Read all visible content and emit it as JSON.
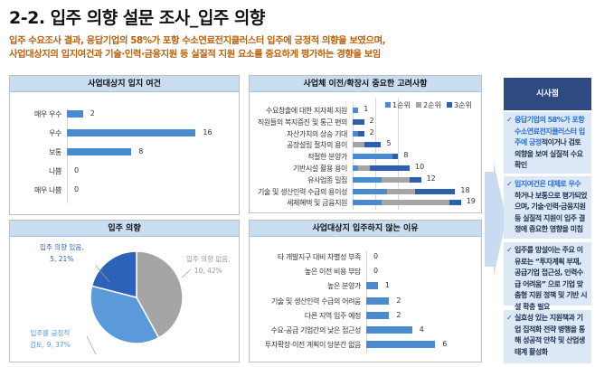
{
  "header": {
    "title": "2-2. 입주 의향 설문 조사_입주 의향",
    "subtitle_lines": [
      "입주 수요조사 결과, 응답기업의 58%가 포항 수소연료전지클러스터 입주에 긍정적 의향을 보였으며,",
      "사업대상지의 입지여건과 기술·인력·금융지원 등 실질적 지원 요소를 중요하게 평가하는 경향을 보임"
    ]
  },
  "chart_data": [
    {
      "type": "bar",
      "orientation": "horizontal",
      "title": "사업대상지 입지 여건",
      "categories": [
        "매우 우수",
        "우수",
        "보통",
        "나쁨",
        "매우 나쁨"
      ],
      "values": [
        2,
        16,
        8,
        0,
        0
      ],
      "color": "#4a8bd0"
    },
    {
      "type": "bar",
      "orientation": "horizontal",
      "stacked": true,
      "title": "사업체 이전/확장시 중요한 고려사항",
      "legend_position": "top-right",
      "categories": [
        "수요창출에 대한 지자체 지원",
        "직원들의 복지증진 및 통근 편의",
        "자산가치의 상승 기대",
        "공장설립 절차의 용이",
        "적절한 분양가",
        "기반시설 활용 용이",
        "유사업종 밀집",
        "기술 및 생산인력 수급의 용이성",
        "세제혜택 및 금융지원"
      ],
      "totals": [
        1,
        2,
        2,
        5,
        8,
        10,
        12,
        18,
        19
      ],
      "series": [
        {
          "name": "1순위",
          "color": "#4a8bd0",
          "values": [
            1,
            0,
            1,
            0,
            7,
            1,
            5,
            6,
            5
          ]
        },
        {
          "name": "2순위",
          "color": "#a5a5a5",
          "values": [
            0,
            0,
            0,
            2,
            0,
            2,
            5,
            5,
            12
          ]
        },
        {
          "name": "3순위",
          "color": "#2e5fae",
          "values": [
            0,
            2,
            1,
            3,
            1,
            7,
            2,
            7,
            2
          ]
        }
      ]
    },
    {
      "type": "pie",
      "title": "입주 의향",
      "slices": [
        {
          "label": "입주 의향 없음,",
          "value_text": "10, 42%",
          "percent": 42,
          "color": "#a5a5a5"
        },
        {
          "label": "입주를 긍정적",
          "value_text": "검토, 9, 37%",
          "percent": 37,
          "color": "#5b9ad8"
        },
        {
          "label": "입주 의향 있음,",
          "value_text": "5, 21%",
          "percent": 21,
          "color": "#2e62b8"
        }
      ]
    },
    {
      "type": "bar",
      "orientation": "horizontal",
      "title": "사업대상지 입주하지 않는 이유",
      "categories": [
        "타 개발지구 대비 차별성 부족",
        "높은 이전 비용 부담",
        "높은 분양가",
        "기술 및 생산인력 수급의 어려움",
        "다른 지역 입주 예정",
        "수요-공급 기업간의 낮은 접근성",
        "투자확장·이전 계획이 당분간 없음"
      ],
      "values": [
        0,
        0,
        1,
        2,
        2,
        4,
        6
      ],
      "color": "#4a8bd0"
    }
  ],
  "sidebar": {
    "title": "시사점",
    "check": "✓",
    "boxes": [
      {
        "highlight": "응답기업의 58%가 포항 수소연료전지클러스터 입주에 긍정",
        "text": "적이거나 검토 의향을 보여 실질적 수요 확인"
      },
      {
        "highlight": "입지여건은 대체로 우수",
        "text": "하거나 보통으로 평가되었으며, 기술·인력·금융지원 등 실질적 지원이 입주 결정에 중요한 영향을 미침"
      },
      {
        "highlight": "",
        "text": "입주를 망설이는 주요 이유로는 “투자계획 부재, 공급기업 접근성, 인력수급 어려움” 으로 기업 맞춤형 지원 정책 및 기반 시설 확충 필요"
      },
      {
        "highlight": "",
        "text": "실효성 있는 지원책과 기업 집적화 전략 병행을 통해 성공적 안착 및 산업생태계 활성화"
      }
    ]
  }
}
